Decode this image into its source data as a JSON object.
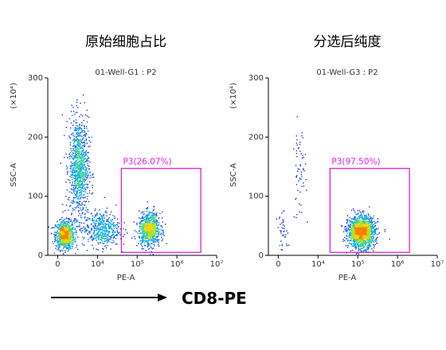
{
  "figure": {
    "bottom_label": "CD8-PE",
    "arrow_color": "#000000"
  },
  "chart_data": [
    {
      "type": "scatter",
      "panel_title": "原始细胞占比",
      "title": "01-Well-G1 : P2",
      "xlabel": "PE-A",
      "ylabel": "SSC-A",
      "y_multiplier_label": "(×10⁴)",
      "x_scale": "biexponential",
      "x_ticks": [
        0,
        10000,
        100000,
        1000000,
        10000000
      ],
      "x_tick_labels": [
        "0",
        "10⁴",
        "10⁵",
        "10⁶",
        "10⁷"
      ],
      "ylim": [
        0,
        300
      ],
      "y_ticks": [
        0,
        100,
        200,
        300
      ],
      "y_tick_labels": [
        "0",
        "100",
        "200",
        "300"
      ],
      "density_coloring": true,
      "gate": {
        "label": "P3(26.07%)",
        "name": "P3",
        "percent": 26.07,
        "x_range": [
          40000,
          4000000
        ],
        "y_range": [
          5,
          147
        ],
        "color": "#e020e0"
      },
      "populations": [
        {
          "x_center": 500,
          "y_center": 35,
          "x_spread": 1000,
          "y_spread": 12,
          "count": 900
        },
        {
          "x_center": 2500,
          "y_center": 150,
          "x_spread": 2500,
          "y_spread": 42,
          "count": 1000
        },
        {
          "x_center": 12000,
          "y_center": 45,
          "x_spread": 20000,
          "y_spread": 15,
          "count": 500
        },
        {
          "x_center": 200000,
          "y_center": 45,
          "x_spread": 150000,
          "y_spread": 14,
          "count": 800
        }
      ]
    },
    {
      "type": "scatter",
      "panel_title": "分选后纯度",
      "title": "01-Well-G3 : P2",
      "xlabel": "PE-A",
      "ylabel": "SSC-A",
      "y_multiplier_label": "(×10⁴)",
      "x_scale": "biexponential",
      "x_ticks": [
        0,
        10000,
        100000,
        1000000,
        10000000
      ],
      "x_tick_labels": [
        "0",
        "10⁴",
        "10⁵",
        "10⁶",
        "10⁷"
      ],
      "ylim": [
        0,
        300
      ],
      "y_ticks": [
        0,
        100,
        200,
        300
      ],
      "y_tick_labels": [
        "0",
        "100",
        "200",
        "300"
      ],
      "density_coloring": true,
      "gate": {
        "label": "P3(97.50%)",
        "name": "P3",
        "percent": 97.5,
        "x_range": [
          20000,
          2000000
        ],
        "y_range": [
          5,
          147
        ],
        "color": "#e020e0"
      },
      "populations": [
        {
          "x_center": 120000,
          "y_center": 40,
          "x_spread": 120000,
          "y_spread": 13,
          "count": 1700
        },
        {
          "x_center": 2500,
          "y_center": 140,
          "x_spread": 1500,
          "y_spread": 40,
          "count": 60
        },
        {
          "x_center": 300,
          "y_center": 40,
          "x_spread": 500,
          "y_spread": 15,
          "count": 40
        }
      ]
    }
  ]
}
